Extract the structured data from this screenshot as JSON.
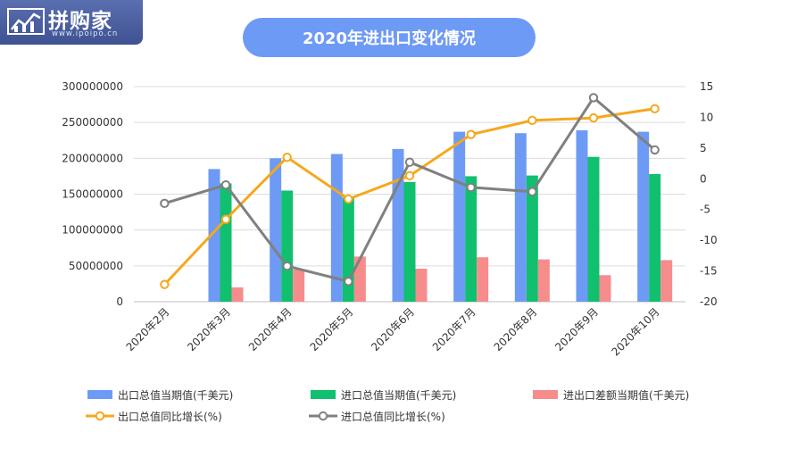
{
  "logo": {
    "name": "拼购家",
    "sub": "www.ipoipo.cn",
    "icon": "chart-trend-icon"
  },
  "chart_data": {
    "type": "bar",
    "title": "2020年进出口变化情况",
    "categories": [
      "2020年2月",
      "2020年3月",
      "2020年4月",
      "2020年5月",
      "2020年6月",
      "2020年7月",
      "2020年8月",
      "2020年9月",
      "2020年10月"
    ],
    "left_axis": {
      "min": 0,
      "max": 300000000,
      "ticks": [
        0,
        50000000,
        100000000,
        150000000,
        200000000,
        250000000,
        300000000
      ]
    },
    "right_axis": {
      "min": -20,
      "max": 15,
      "ticks": [
        -20,
        -15,
        -10,
        -5,
        0,
        5,
        10,
        15
      ]
    },
    "grid": "horizontal",
    "legend_position": "bottom",
    "series": [
      {
        "name": "出口总值当期值(千美元)",
        "type": "bar",
        "axis": "left",
        "color": "#6d9af5",
        "values": [
          null,
          185000000,
          200000000,
          206000000,
          213000000,
          237000000,
          235000000,
          239000000,
          237000000
        ]
      },
      {
        "name": "进口总值当期值(千美元)",
        "type": "bar",
        "axis": "left",
        "color": "#10c06e",
        "values": [
          null,
          165000000,
          155000000,
          145000000,
          167000000,
          175000000,
          176000000,
          202000000,
          178000000
        ]
      },
      {
        "name": "进出口差额当期值(千美元)",
        "type": "bar",
        "axis": "left",
        "color": "#f68c8c",
        "values": [
          null,
          20000000,
          45000000,
          63000000,
          46000000,
          62000000,
          59000000,
          37000000,
          58000000
        ]
      },
      {
        "name": "出口总值同比增长(%)",
        "type": "line",
        "axis": "right",
        "color": "#f5a81c",
        "values": [
          -17.2,
          -6.6,
          3.5,
          -3.3,
          0.5,
          7.2,
          9.5,
          9.9,
          11.4
        ]
      },
      {
        "name": "进口总值同比增长(%)",
        "type": "line",
        "axis": "right",
        "color": "#808080",
        "values": [
          -4.0,
          -1.0,
          -14.2,
          -16.7,
          2.7,
          -1.4,
          -2.1,
          13.2,
          4.7
        ]
      }
    ]
  }
}
